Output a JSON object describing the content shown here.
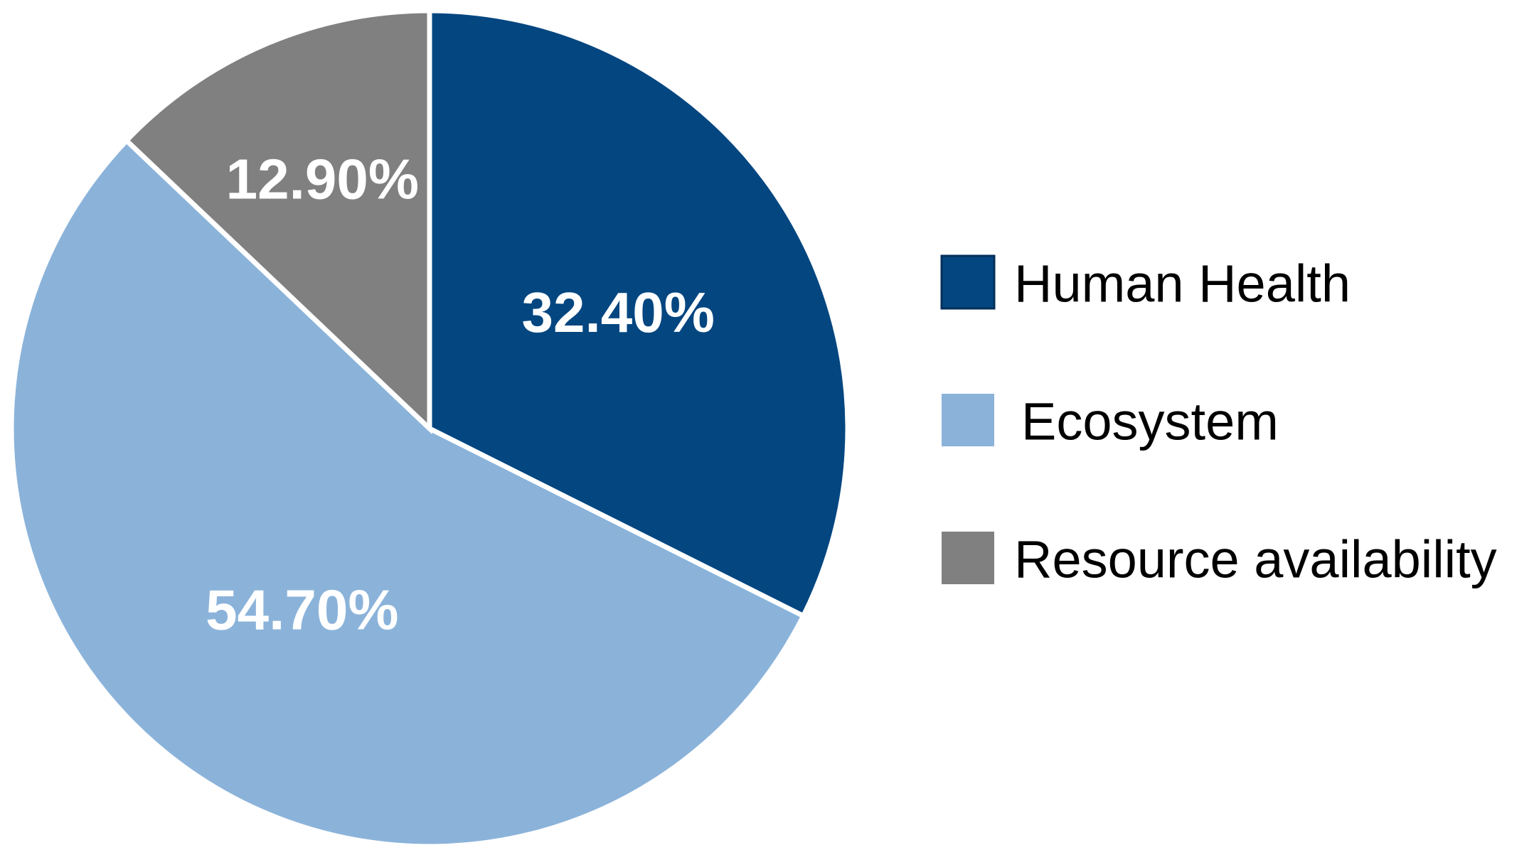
{
  "chart_data": {
    "type": "pie",
    "title": "",
    "slices": [
      {
        "label": "Human Health",
        "value": 32.4,
        "value_label": "32.40%",
        "color": "#034680"
      },
      {
        "label": "Ecosystem",
        "value": 54.7,
        "value_label": "54.70%",
        "color": "#8bb3da"
      },
      {
        "label": "Resource availability",
        "value": 12.9,
        "value_label": "12.90%",
        "color": "#808080"
      }
    ],
    "start_angle": "12 o'clock",
    "direction": "clockwise",
    "legend_position": "right",
    "slice_separator_color": "#ffffff"
  }
}
